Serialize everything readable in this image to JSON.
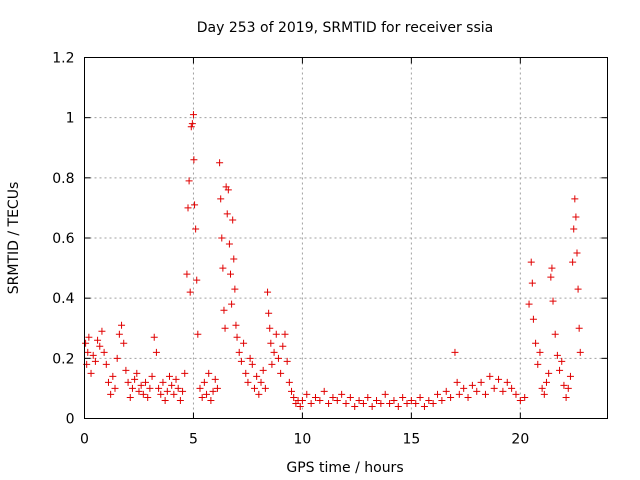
{
  "chart_data": {
    "type": "scatter",
    "title": "Day 253 of 2019, SRMTID for receiver ssia",
    "xlabel": "GPS time / hours",
    "ylabel": "SRMTID / TECUs",
    "xlim": [
      0,
      24
    ],
    "ylim": [
      0,
      1.2
    ],
    "xticks": [
      0,
      5,
      10,
      15,
      20
    ],
    "yticks": [
      0,
      0.2,
      0.4,
      0.6,
      0.8,
      1,
      1.2
    ],
    "xtick_labels": [
      "0",
      "5",
      "10",
      "15",
      "20"
    ],
    "ytick_labels": [
      "0",
      "0.2",
      "0.4",
      "0.6",
      "0.8",
      "1",
      "1.2"
    ],
    "grid": true,
    "marker": "+",
    "color": "#e00000",
    "series": [
      {
        "name": "SRMTID",
        "points": [
          [
            0.05,
            0.25
          ],
          [
            0.1,
            0.18
          ],
          [
            0.15,
            0.22
          ],
          [
            0.2,
            0.27
          ],
          [
            0.3,
            0.15
          ],
          [
            0.4,
            0.21
          ],
          [
            0.5,
            0.19
          ],
          [
            0.6,
            0.26
          ],
          [
            0.7,
            0.24
          ],
          [
            0.8,
            0.29
          ],
          [
            0.9,
            0.22
          ],
          [
            1.0,
            0.18
          ],
          [
            1.1,
            0.12
          ],
          [
            1.2,
            0.08
          ],
          [
            1.3,
            0.14
          ],
          [
            1.4,
            0.1
          ],
          [
            1.5,
            0.2
          ],
          [
            1.6,
            0.28
          ],
          [
            1.7,
            0.31
          ],
          [
            1.8,
            0.25
          ],
          [
            1.9,
            0.16
          ],
          [
            2.0,
            0.12
          ],
          [
            2.1,
            0.07
          ],
          [
            2.2,
            0.1
          ],
          [
            2.3,
            0.13
          ],
          [
            2.4,
            0.15
          ],
          [
            2.5,
            0.09
          ],
          [
            2.6,
            0.11
          ],
          [
            2.7,
            0.08
          ],
          [
            2.8,
            0.12
          ],
          [
            2.9,
            0.07
          ],
          [
            3.0,
            0.1
          ],
          [
            3.1,
            0.14
          ],
          [
            3.2,
            0.27
          ],
          [
            3.3,
            0.22
          ],
          [
            3.4,
            0.1
          ],
          [
            3.5,
            0.08
          ],
          [
            3.6,
            0.12
          ],
          [
            3.7,
            0.06
          ],
          [
            3.8,
            0.09
          ],
          [
            3.9,
            0.14
          ],
          [
            4.0,
            0.11
          ],
          [
            4.1,
            0.08
          ],
          [
            4.2,
            0.13
          ],
          [
            4.3,
            0.1
          ],
          [
            4.4,
            0.06
          ],
          [
            4.5,
            0.09
          ],
          [
            4.6,
            0.15
          ],
          [
            4.7,
            0.48
          ],
          [
            4.75,
            0.7
          ],
          [
            4.8,
            0.79
          ],
          [
            4.85,
            0.42
          ],
          [
            4.9,
            0.97
          ],
          [
            4.95,
            0.98
          ],
          [
            5.0,
            1.01
          ],
          [
            5.02,
            0.86
          ],
          [
            5.05,
            0.71
          ],
          [
            5.1,
            0.63
          ],
          [
            5.15,
            0.46
          ],
          [
            5.2,
            0.28
          ],
          [
            5.3,
            0.1
          ],
          [
            5.4,
            0.07
          ],
          [
            5.5,
            0.12
          ],
          [
            5.6,
            0.08
          ],
          [
            5.7,
            0.15
          ],
          [
            5.8,
            0.06
          ],
          [
            5.9,
            0.09
          ],
          [
            6.0,
            0.13
          ],
          [
            6.1,
            0.1
          ],
          [
            6.2,
            0.85
          ],
          [
            6.25,
            0.73
          ],
          [
            6.3,
            0.6
          ],
          [
            6.35,
            0.5
          ],
          [
            6.4,
            0.36
          ],
          [
            6.45,
            0.3
          ],
          [
            6.5,
            0.77
          ],
          [
            6.55,
            0.68
          ],
          [
            6.6,
            0.76
          ],
          [
            6.65,
            0.58
          ],
          [
            6.7,
            0.48
          ],
          [
            6.75,
            0.38
          ],
          [
            6.8,
            0.66
          ],
          [
            6.85,
            0.53
          ],
          [
            6.9,
            0.43
          ],
          [
            6.95,
            0.31
          ],
          [
            7.0,
            0.27
          ],
          [
            7.1,
            0.22
          ],
          [
            7.2,
            0.19
          ],
          [
            7.3,
            0.25
          ],
          [
            7.4,
            0.15
          ],
          [
            7.5,
            0.12
          ],
          [
            7.6,
            0.2
          ],
          [
            7.7,
            0.18
          ],
          [
            7.8,
            0.1
          ],
          [
            7.9,
            0.14
          ],
          [
            8.0,
            0.08
          ],
          [
            8.1,
            0.12
          ],
          [
            8.2,
            0.16
          ],
          [
            8.3,
            0.1
          ],
          [
            8.4,
            0.42
          ],
          [
            8.45,
            0.35
          ],
          [
            8.5,
            0.3
          ],
          [
            8.55,
            0.25
          ],
          [
            8.6,
            0.18
          ],
          [
            8.7,
            0.22
          ],
          [
            8.8,
            0.28
          ],
          [
            8.9,
            0.2
          ],
          [
            9.0,
            0.15
          ],
          [
            9.1,
            0.24
          ],
          [
            9.2,
            0.28
          ],
          [
            9.3,
            0.19
          ],
          [
            9.4,
            0.12
          ],
          [
            9.5,
            0.09
          ],
          [
            9.6,
            0.07
          ],
          [
            9.7,
            0.05
          ],
          [
            9.8,
            0.06
          ],
          [
            9.9,
            0.04
          ],
          [
            10.0,
            0.06
          ],
          [
            10.2,
            0.08
          ],
          [
            10.4,
            0.05
          ],
          [
            10.6,
            0.07
          ],
          [
            10.8,
            0.06
          ],
          [
            11.0,
            0.09
          ],
          [
            11.2,
            0.05
          ],
          [
            11.4,
            0.07
          ],
          [
            11.6,
            0.06
          ],
          [
            11.8,
            0.08
          ],
          [
            12.0,
            0.05
          ],
          [
            12.2,
            0.07
          ],
          [
            12.4,
            0.04
          ],
          [
            12.6,
            0.06
          ],
          [
            12.8,
            0.05
          ],
          [
            13.0,
            0.07
          ],
          [
            13.2,
            0.04
          ],
          [
            13.4,
            0.06
          ],
          [
            13.6,
            0.05
          ],
          [
            13.8,
            0.08
          ],
          [
            14.0,
            0.05
          ],
          [
            14.2,
            0.06
          ],
          [
            14.4,
            0.04
          ],
          [
            14.6,
            0.07
          ],
          [
            14.8,
            0.05
          ],
          [
            15.0,
            0.06
          ],
          [
            15.2,
            0.05
          ],
          [
            15.4,
            0.07
          ],
          [
            15.6,
            0.04
          ],
          [
            15.8,
            0.06
          ],
          [
            16.0,
            0.05
          ],
          [
            16.2,
            0.08
          ],
          [
            16.4,
            0.06
          ],
          [
            16.6,
            0.09
          ],
          [
            16.8,
            0.07
          ],
          [
            17.0,
            0.22
          ],
          [
            17.1,
            0.12
          ],
          [
            17.2,
            0.08
          ],
          [
            17.4,
            0.1
          ],
          [
            17.6,
            0.07
          ],
          [
            17.8,
            0.11
          ],
          [
            18.0,
            0.09
          ],
          [
            18.2,
            0.12
          ],
          [
            18.4,
            0.08
          ],
          [
            18.6,
            0.14
          ],
          [
            18.8,
            0.1
          ],
          [
            19.0,
            0.13
          ],
          [
            19.2,
            0.09
          ],
          [
            19.4,
            0.12
          ],
          [
            19.6,
            0.1
          ],
          [
            19.8,
            0.08
          ],
          [
            20.0,
            0.06
          ],
          [
            20.2,
            0.07
          ],
          [
            20.4,
            0.38
          ],
          [
            20.5,
            0.52
          ],
          [
            20.55,
            0.45
          ],
          [
            20.6,
            0.33
          ],
          [
            20.7,
            0.25
          ],
          [
            20.8,
            0.18
          ],
          [
            20.9,
            0.22
          ],
          [
            21.0,
            0.1
          ],
          [
            21.1,
            0.08
          ],
          [
            21.2,
            0.12
          ],
          [
            21.3,
            0.15
          ],
          [
            21.4,
            0.47
          ],
          [
            21.45,
            0.5
          ],
          [
            21.5,
            0.39
          ],
          [
            21.6,
            0.28
          ],
          [
            21.7,
            0.21
          ],
          [
            21.8,
            0.16
          ],
          [
            21.9,
            0.19
          ],
          [
            22.0,
            0.11
          ],
          [
            22.1,
            0.07
          ],
          [
            22.2,
            0.1
          ],
          [
            22.3,
            0.14
          ],
          [
            22.4,
            0.52
          ],
          [
            22.45,
            0.63
          ],
          [
            22.5,
            0.73
          ],
          [
            22.55,
            0.67
          ],
          [
            22.6,
            0.55
          ],
          [
            22.65,
            0.43
          ],
          [
            22.7,
            0.3
          ],
          [
            22.75,
            0.22
          ]
        ]
      }
    ]
  }
}
